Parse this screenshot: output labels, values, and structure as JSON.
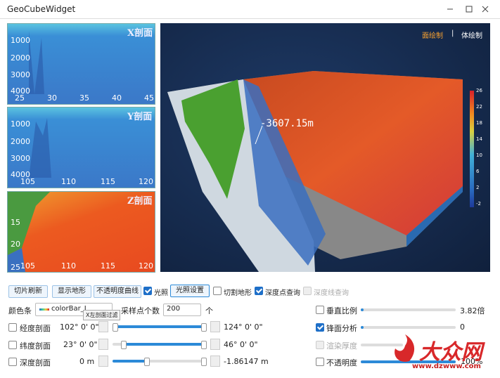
{
  "window": {
    "title": "GeoCubeWidget"
  },
  "panels": [
    {
      "label": "X剖面",
      "yticks": [
        "1000",
        "2000",
        "3000",
        "4000"
      ],
      "xticks": [
        "25",
        "30",
        "35",
        "40",
        "45"
      ]
    },
    {
      "label": "Y剖面",
      "yticks": [
        "1000",
        "2000",
        "3000",
        "4000"
      ],
      "xticks": [
        "105",
        "110",
        "115",
        "120"
      ]
    },
    {
      "label": "Z剖面",
      "yticks": [
        "15",
        "20",
        "25"
      ],
      "xticks": [
        "105",
        "110",
        "115",
        "120"
      ]
    }
  ],
  "view": {
    "mode_surface": "面绘制",
    "separator": "|",
    "mode_volume": "体绘制",
    "annotation": "-3607.15m",
    "colorbar": [
      "26",
      "22",
      "18",
      "14",
      "10",
      "6",
      "2",
      "-2"
    ]
  },
  "toolbar": {
    "refresh": "切片刷新",
    "terrain": "显示地形",
    "opacity_curve": "不透明度曲线",
    "lighting": "光照",
    "lighting_settings": "光照设置",
    "cut_terrain": "切割地形",
    "depth_point": "深度点查询",
    "depth_line": "深度线查询"
  },
  "controls": {
    "colorbar_label": "颜色条",
    "colorbar_value": "colorBar_J",
    "tooltip": "X左剖面过滤",
    "samples_label": "采样点个数",
    "samples_value": "200",
    "samples_unit": "个",
    "lon_label": "经度剖面",
    "lon_min": "102° 0' 0\"",
    "lon_max": "124° 0' 0\"",
    "lat_label": "纬度剖面",
    "lat_min": "23° 0' 0\"",
    "lat_max": "46° 0' 0\"",
    "depth_label": "深度剖面",
    "depth_min": "0 m",
    "depth_max": "-1.86147 m",
    "vscale_label": "垂直比例",
    "vscale_value": "3.82倍",
    "front_label": "锋面分析",
    "front_value": "0",
    "thickness_label": "渲染厚度",
    "opacity_label": "不透明度",
    "opacity_value": "100%"
  },
  "watermark": {
    "logo": "大众网",
    "url": "www.dzwww.com"
  }
}
